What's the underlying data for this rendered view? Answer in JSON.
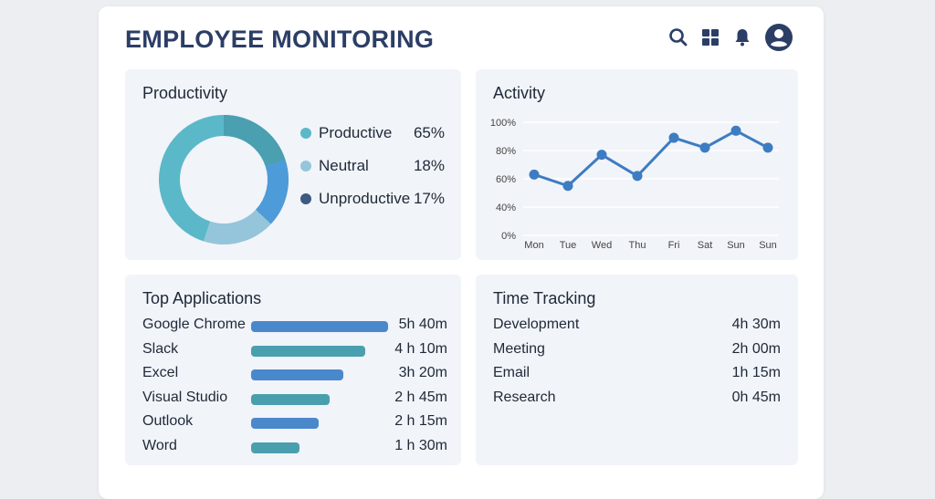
{
  "header": {
    "title": "EMPLOYEE MONITORING",
    "icons": [
      "search-icon",
      "grid-icon",
      "bell-icon",
      "user-avatar-icon"
    ],
    "accent": "#2c3e66"
  },
  "productivity": {
    "title": "Productivity",
    "items": [
      {
        "label": "Productive",
        "value": "65%",
        "pct": 65,
        "color": "#5bb8c8"
      },
      {
        "label": "Neutral",
        "value": "18%",
        "pct": 18,
        "color": "#95c5da"
      },
      {
        "label": "Unproductive",
        "value": "17%",
        "pct": 17,
        "color": "#3d5a80"
      }
    ]
  },
  "chart_data": {
    "type": "line",
    "title": "Activity",
    "categories": [
      "Mon",
      "Tue",
      "Wed",
      "Thu",
      "Fri",
      "Sat",
      "Sun",
      "Sun"
    ],
    "y_ticks": [
      "100%",
      "80%",
      "60%",
      "40%",
      "0%"
    ],
    "values": [
      63,
      55,
      77,
      62,
      89,
      82,
      94,
      82
    ],
    "grid": true,
    "color": "#3d7cc2"
  },
  "top_apps": {
    "title": "Top Applications",
    "items": [
      {
        "name": "Google Chrome",
        "time": "5h 40m",
        "share": 1.0,
        "color": "#4a88cc"
      },
      {
        "name": "Slack",
        "time": "4 h 10m",
        "share": 0.83,
        "color": "#4a9fae"
      },
      {
        "name": "Excel",
        "time": "3h 20m",
        "share": 0.67,
        "color": "#4a88cc"
      },
      {
        "name": "Visual Studio",
        "time": "2 h 45m",
        "share": 0.57,
        "color": "#4a9fae"
      },
      {
        "name": "Outlook",
        "time": "2 h 15m",
        "share": 0.49,
        "color": "#4a88cc"
      },
      {
        "name": "Word",
        "time": "1 h 30m",
        "share": 0.35,
        "color": "#4a9fae"
      }
    ]
  },
  "time_tracking": {
    "title": "Time Tracking",
    "items": [
      {
        "name": "Development",
        "time": "4h 30m"
      },
      {
        "name": "Meeting",
        "time": "2h 00m"
      },
      {
        "name": "Email",
        "time": "1h 15m"
      },
      {
        "name": "Research",
        "time": "0h 45m"
      }
    ]
  }
}
